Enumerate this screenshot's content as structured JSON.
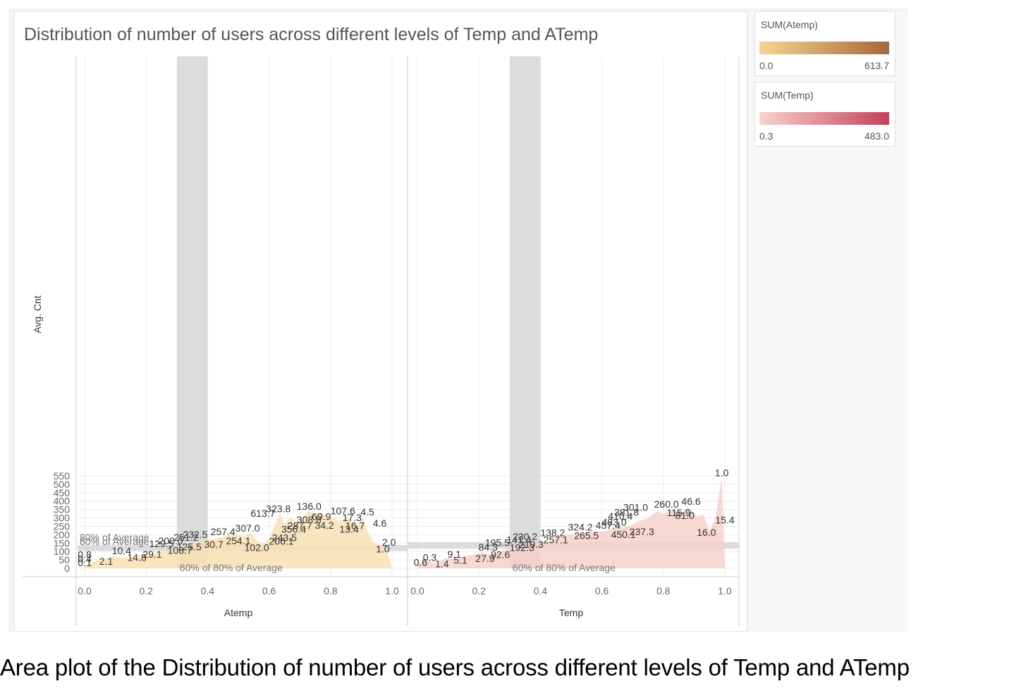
{
  "caption": "Area plot of the Distribution of number of users across different levels of Temp and ATemp",
  "colors": {
    "atemp_fill": "#f8dfb0",
    "temp_fill": "#f6cfc8",
    "reference_band": "#d6d6d6",
    "grid": "#ececec",
    "axis_text": "#666666",
    "label_text": "#333333"
  },
  "legend": [
    {
      "title": "SUM(Atemp)",
      "min": "0.0",
      "max": "613.7",
      "from": "#f5d58f",
      "to": "#a8673a"
    },
    {
      "title": "SUM(Temp)",
      "min": "0.3",
      "max": "483.0",
      "from": "#f8d4cc",
      "to": "#c4405a"
    }
  ],
  "chart_data": {
    "type": "area",
    "title": "Distribution of number of users across different levels of Temp and ATemp",
    "ylabel": "Avg. Cnt",
    "ylim": [
      0,
      550
    ],
    "yticks": [
      "0",
      "50",
      "100",
      "150",
      "200",
      "250",
      "300",
      "350",
      "400",
      "450",
      "500",
      "550"
    ],
    "xticks": [
      "0.0",
      "0.2",
      "0.4",
      "0.6",
      "0.8",
      "1.0"
    ],
    "grid": true,
    "panels": [
      {
        "xlabel": "Atemp",
        "xlim": [
          0,
          1
        ],
        "x": [
          0.0,
          0.03,
          0.06,
          0.09,
          0.12,
          0.15,
          0.18,
          0.21,
          0.24,
          0.27,
          0.3,
          0.33,
          0.36,
          0.39,
          0.42,
          0.45,
          0.48,
          0.5,
          0.52,
          0.54,
          0.56,
          0.58,
          0.6,
          0.62,
          0.635,
          0.65,
          0.67,
          0.69,
          0.71,
          0.73,
          0.75,
          0.77,
          0.79,
          0.81,
          0.83,
          0.85,
          0.87,
          0.89,
          0.905,
          0.92,
          0.94,
          0.96,
          0.98,
          1.0
        ],
        "y": [
          10,
          40,
          55,
          70,
          60,
          68,
          75,
          85,
          95,
          105,
          118,
          130,
          148,
          165,
          175,
          188,
          198,
          200,
          190,
          214,
          165,
          145,
          175,
          260,
          330,
          262,
          305,
          270,
          300,
          345,
          320,
          335,
          310,
          302,
          280,
          300,
          278,
          265,
          305,
          220,
          150,
          140,
          115,
          0
        ],
        "reference_band": {
          "from": 104,
          "to": 138,
          "labels": [
            "80% of Average",
            "60% of Average"
          ]
        },
        "highlight": {
          "from": 0.3,
          "to": 0.4,
          "label": "60% of 80% of Average"
        },
        "annotations": [
          {
            "x": 0.0,
            "y": 12,
            "text": "0.1"
          },
          {
            "x": 0.0,
            "y": 35,
            "text": "0.4"
          },
          {
            "x": 0.0,
            "y": 60,
            "text": "0.8"
          },
          {
            "x": 0.07,
            "y": 22,
            "text": "2.1"
          },
          {
            "x": 0.17,
            "y": 45,
            "text": "14.8"
          },
          {
            "x": 0.12,
            "y": 84,
            "text": "10.4"
          },
          {
            "x": 0.22,
            "y": 62,
            "text": "29.1"
          },
          {
            "x": 0.31,
            "y": 86,
            "text": "108.7"
          },
          {
            "x": 0.34,
            "y": 108,
            "text": "125.5"
          },
          {
            "x": 0.25,
            "y": 125,
            "text": "129.5"
          },
          {
            "x": 0.28,
            "y": 142,
            "text": "200.0"
          },
          {
            "x": 0.33,
            "y": 163,
            "text": "251.2"
          },
          {
            "x": 0.36,
            "y": 180,
            "text": "232.5"
          },
          {
            "x": 0.45,
            "y": 198,
            "text": "257.4"
          },
          {
            "x": 0.42,
            "y": 121,
            "text": "30.7"
          },
          {
            "x": 0.5,
            "y": 143,
            "text": "254.1"
          },
          {
            "x": 0.56,
            "y": 102,
            "text": "102.0"
          },
          {
            "x": 0.53,
            "y": 218,
            "text": "307.0"
          },
          {
            "x": 0.64,
            "y": 141,
            "text": "206.1"
          },
          {
            "x": 0.65,
            "y": 162,
            "text": "243.5"
          },
          {
            "x": 0.68,
            "y": 211,
            "text": "356.4"
          },
          {
            "x": 0.7,
            "y": 233,
            "text": "287.7"
          },
          {
            "x": 0.78,
            "y": 236,
            "text": "34.2"
          },
          {
            "x": 0.73,
            "y": 268,
            "text": "308.8"
          },
          {
            "x": 0.77,
            "y": 287,
            "text": "69.9"
          },
          {
            "x": 0.58,
            "y": 307,
            "text": "613.7"
          },
          {
            "x": 0.63,
            "y": 333,
            "text": "323.8"
          },
          {
            "x": 0.73,
            "y": 349,
            "text": "136.0"
          },
          {
            "x": 0.84,
            "y": 322,
            "text": "107.6"
          },
          {
            "x": 0.92,
            "y": 314,
            "text": "4.5"
          },
          {
            "x": 0.87,
            "y": 281,
            "text": "17.3"
          },
          {
            "x": 0.88,
            "y": 232,
            "text": "16.7"
          },
          {
            "x": 0.86,
            "y": 212,
            "text": "13.4"
          },
          {
            "x": 0.96,
            "y": 248,
            "text": "4.6"
          },
          {
            "x": 0.99,
            "y": 135,
            "text": "2.0"
          },
          {
            "x": 0.97,
            "y": 95,
            "text": "1.0"
          }
        ]
      },
      {
        "xlabel": "Temp",
        "xlim": [
          0,
          1
        ],
        "x": [
          0.0,
          0.03,
          0.06,
          0.09,
          0.12,
          0.15,
          0.18,
          0.21,
          0.24,
          0.27,
          0.3,
          0.33,
          0.36,
          0.39,
          0.42,
          0.45,
          0.48,
          0.51,
          0.54,
          0.57,
          0.6,
          0.63,
          0.66,
          0.69,
          0.72,
          0.75,
          0.78,
          0.8,
          0.83,
          0.86,
          0.88,
          0.91,
          0.93,
          0.95,
          0.97,
          0.99,
          1.0
        ],
        "y": [
          25,
          45,
          28,
          60,
          55,
          70,
          80,
          95,
          80,
          100,
          120,
          130,
          150,
          160,
          152,
          180,
          200,
          205,
          210,
          222,
          218,
          235,
          245,
          250,
          280,
          300,
          340,
          322,
          350,
          330,
          365,
          310,
          320,
          220,
          300,
          540,
          0
        ],
        "reference_band": {
          "from": 116,
          "to": 155,
          "labels": []
        },
        "highlight": {
          "from": 0.3,
          "to": 0.4,
          "label": "60% of 80% of Average"
        },
        "annotations": [
          {
            "x": 0.01,
            "y": 14,
            "text": "0.6"
          },
          {
            "x": 0.08,
            "y": 6,
            "text": "1.4"
          },
          {
            "x": 0.04,
            "y": 45,
            "text": "0.3"
          },
          {
            "x": 0.14,
            "y": 27,
            "text": "5.1"
          },
          {
            "x": 0.22,
            "y": 38,
            "text": "27.9"
          },
          {
            "x": 0.12,
            "y": 63,
            "text": "9.1"
          },
          {
            "x": 0.27,
            "y": 61,
            "text": "92.6"
          },
          {
            "x": 0.23,
            "y": 105,
            "text": "84.3"
          },
          {
            "x": 0.34,
            "y": 103,
            "text": "192.3"
          },
          {
            "x": 0.26,
            "y": 132,
            "text": "195.5"
          },
          {
            "x": 0.37,
            "y": 121,
            "text": "219.3"
          },
          {
            "x": 0.33,
            "y": 149,
            "text": "141.4"
          },
          {
            "x": 0.35,
            "y": 168,
            "text": "230.2"
          },
          {
            "x": 0.45,
            "y": 148,
            "text": "257.1"
          },
          {
            "x": 0.44,
            "y": 192,
            "text": "138.2"
          },
          {
            "x": 0.55,
            "y": 174,
            "text": "265.5"
          },
          {
            "x": 0.53,
            "y": 224,
            "text": "324.2"
          },
          {
            "x": 0.62,
            "y": 235,
            "text": "457.4"
          },
          {
            "x": 0.67,
            "y": 180,
            "text": "450.1"
          },
          {
            "x": 0.73,
            "y": 198,
            "text": "237.3"
          },
          {
            "x": 0.64,
            "y": 255,
            "text": "483.0"
          },
          {
            "x": 0.66,
            "y": 290,
            "text": "410.4"
          },
          {
            "x": 0.68,
            "y": 313,
            "text": "381.8"
          },
          {
            "x": 0.71,
            "y": 343,
            "text": "301.0"
          },
          {
            "x": 0.81,
            "y": 360,
            "text": "260.0"
          },
          {
            "x": 0.89,
            "y": 377,
            "text": "46.6"
          },
          {
            "x": 0.85,
            "y": 310,
            "text": "115.9"
          },
          {
            "x": 0.87,
            "y": 294,
            "text": "81.0"
          },
          {
            "x": 0.94,
            "y": 193,
            "text": "16.0"
          },
          {
            "x": 1.0,
            "y": 266,
            "text": "15.4"
          },
          {
            "x": 0.99,
            "y": 548,
            "text": "1.0"
          }
        ]
      }
    ]
  }
}
